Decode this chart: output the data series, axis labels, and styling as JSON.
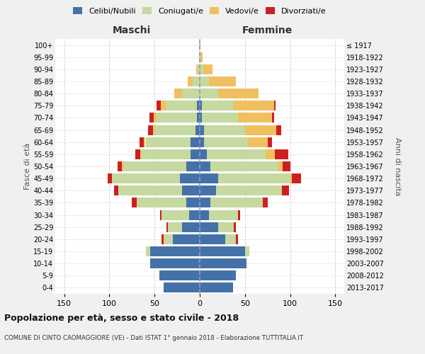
{
  "age_groups": [
    "0-4",
    "5-9",
    "10-14",
    "15-19",
    "20-24",
    "25-29",
    "30-34",
    "35-39",
    "40-44",
    "45-49",
    "50-54",
    "55-59",
    "60-64",
    "65-69",
    "70-74",
    "75-79",
    "80-84",
    "85-89",
    "90-94",
    "95-99",
    "100+"
  ],
  "birth_years": [
    "2013-2017",
    "2008-2012",
    "2003-2007",
    "1998-2002",
    "1993-1997",
    "1988-1992",
    "1983-1987",
    "1978-1982",
    "1973-1977",
    "1968-1972",
    "1963-1967",
    "1958-1962",
    "1953-1957",
    "1948-1952",
    "1943-1947",
    "1938-1942",
    "1933-1937",
    "1928-1932",
    "1923-1927",
    "1918-1922",
    "≤ 1917"
  ],
  "male": {
    "celibi": [
      40,
      45,
      55,
      55,
      30,
      20,
      12,
      15,
      20,
      22,
      15,
      10,
      10,
      5,
      3,
      3,
      0,
      0,
      0,
      0,
      0
    ],
    "coniugati": [
      0,
      0,
      0,
      5,
      10,
      15,
      30,
      55,
      70,
      75,
      70,
      55,
      50,
      45,
      45,
      35,
      20,
      8,
      2,
      1,
      1
    ],
    "vedovi": [
      0,
      0,
      0,
      0,
      0,
      0,
      0,
      0,
      0,
      0,
      1,
      1,
      2,
      2,
      3,
      5,
      8,
      5,
      2,
      0,
      0
    ],
    "divorziati": [
      0,
      0,
      0,
      0,
      2,
      2,
      2,
      5,
      5,
      5,
      5,
      5,
      5,
      5,
      5,
      5,
      0,
      0,
      0,
      0,
      0
    ]
  },
  "female": {
    "nubili": [
      37,
      40,
      52,
      50,
      28,
      20,
      10,
      12,
      18,
      20,
      12,
      8,
      5,
      5,
      2,
      2,
      0,
      0,
      0,
      0,
      0
    ],
    "coniugate": [
      0,
      0,
      0,
      5,
      12,
      18,
      32,
      58,
      72,
      80,
      75,
      65,
      48,
      45,
      40,
      35,
      20,
      10,
      4,
      1,
      0
    ],
    "vedove": [
      0,
      0,
      0,
      0,
      0,
      0,
      0,
      0,
      1,
      2,
      5,
      10,
      22,
      35,
      38,
      45,
      45,
      30,
      10,
      2,
      1
    ],
    "divorziate": [
      0,
      0,
      0,
      0,
      2,
      2,
      3,
      5,
      8,
      10,
      8,
      15,
      5,
      5,
      2,
      2,
      0,
      0,
      0,
      0,
      0
    ]
  },
  "colors": {
    "celibi": "#4472a8",
    "coniugati": "#c5d9a0",
    "vedovi": "#f0c060",
    "divorziati": "#cc2020"
  },
  "title": "Popolazione per età, sesso e stato civile - 2018",
  "subtitle": "COMUNE DI CINTO CAOMAGGIORE (VE) - Dati ISTAT 1° gennaio 2018 - Elaborazione TUTTITALIA.IT",
  "xlabel_left": "Maschi",
  "xlabel_right": "Femmine",
  "ylabel_left": "Fasce di età",
  "ylabel_right": "Anni di nascita",
  "xlim": 160,
  "bg_color": "#f0f0f0",
  "plot_bg": "#ffffff",
  "legend_labels": [
    "Celibi/Nubili",
    "Coniugati/e",
    "Vedovi/e",
    "Divorziati/e"
  ]
}
